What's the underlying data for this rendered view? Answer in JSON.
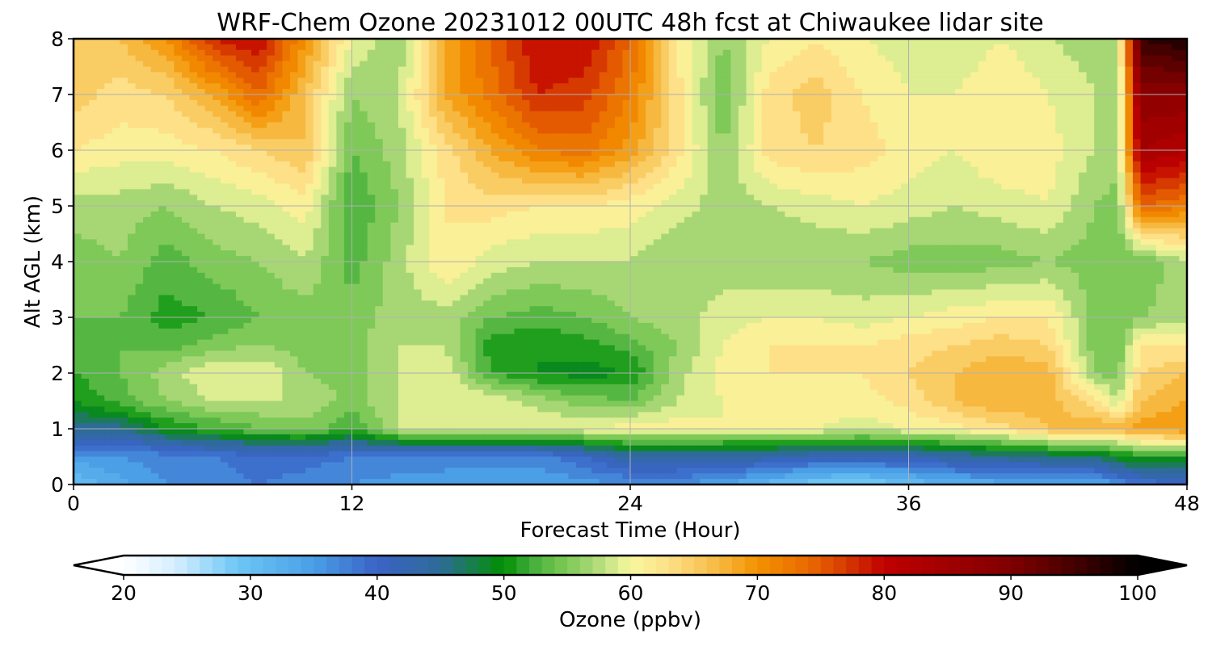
{
  "chart_data": {
    "type": "heatmap",
    "title": "WRF-Chem Ozone  20231012 00UTC 48h fcst at Chiwaukee lidar site",
    "xlabel": "Forecast Time (Hour)",
    "ylabel": "Alt AGL (km)",
    "xlim": [
      0,
      48
    ],
    "ylim": [
      0,
      8
    ],
    "xticks": [
      "0",
      "12",
      "24",
      "36",
      "48"
    ],
    "yticks": [
      "0",
      "1",
      "2",
      "3",
      "4",
      "5",
      "6",
      "7",
      "8"
    ],
    "grid": true,
    "colorbar": {
      "label": "Ozone  (ppbv)",
      "range": [
        20,
        100
      ],
      "ticks": [
        "20",
        "30",
        "40",
        "50",
        "60",
        "70",
        "80",
        "90",
        "100"
      ],
      "extend": "both",
      "orientation": "horizontal",
      "stops": [
        {
          "v": 20,
          "c": "#ffffff"
        },
        {
          "v": 24,
          "c": "#d6efff"
        },
        {
          "v": 29,
          "c": "#6ec6f5"
        },
        {
          "v": 35,
          "c": "#4a9fe6"
        },
        {
          "v": 40,
          "c": "#3a63c6"
        },
        {
          "v": 45,
          "c": "#2e6b98"
        },
        {
          "v": 50,
          "c": "#009000"
        },
        {
          "v": 52,
          "c": "#3fab3a"
        },
        {
          "v": 54,
          "c": "#6ac24a"
        },
        {
          "v": 57,
          "c": "#a7d774"
        },
        {
          "v": 60,
          "c": "#f8f8a0"
        },
        {
          "v": 63,
          "c": "#fde088"
        },
        {
          "v": 67,
          "c": "#f7b840"
        },
        {
          "v": 70,
          "c": "#f39200"
        },
        {
          "v": 74,
          "c": "#ea6a00"
        },
        {
          "v": 77,
          "c": "#d63a00"
        },
        {
          "v": 80,
          "c": "#c00000"
        },
        {
          "v": 85,
          "c": "#a00000"
        },
        {
          "v": 90,
          "c": "#800000"
        },
        {
          "v": 95,
          "c": "#450000"
        },
        {
          "v": 100,
          "c": "#000000"
        }
      ]
    },
    "times": [
      0,
      2,
      4,
      6,
      8,
      10,
      12,
      14,
      16,
      18,
      20,
      22,
      24,
      26,
      28,
      30,
      32,
      34,
      36,
      38,
      40,
      42,
      44,
      45,
      46,
      48
    ],
    "altitudes": [
      0,
      0.5,
      1,
      1.5,
      2,
      2.5,
      3,
      4,
      5,
      6,
      7,
      8
    ],
    "values": [
      [
        30,
        33,
        36,
        37,
        38,
        37,
        36,
        35,
        35,
        34,
        34,
        35,
        36,
        36,
        34,
        31,
        28,
        27,
        30,
        32,
        33,
        33,
        33,
        36,
        38,
        40
      ],
      [
        35,
        36,
        37,
        38,
        39,
        39,
        38,
        38,
        37,
        37,
        37,
        40,
        44,
        44,
        44,
        43,
        42,
        42,
        42,
        44,
        45,
        46,
        47,
        49,
        51,
        51
      ],
      [
        45,
        45,
        50,
        52,
        54,
        55,
        52,
        58,
        59,
        60,
        60,
        60,
        61,
        61,
        60,
        60,
        60,
        59,
        60,
        61,
        63,
        66,
        68,
        67,
        69,
        70
      ],
      [
        50,
        53,
        56,
        58,
        58,
        58,
        55,
        58,
        59,
        60,
        57,
        55,
        54,
        58,
        60,
        61,
        61,
        61,
        63,
        66,
        68,
        67,
        63,
        58,
        66,
        68
      ],
      [
        52,
        54,
        57,
        60,
        60,
        56,
        55,
        58,
        60,
        52,
        50,
        49,
        50,
        57,
        61,
        62,
        62,
        62,
        64,
        66,
        68,
        67,
        56,
        55,
        64,
        66
      ],
      [
        53,
        54,
        53,
        55,
        56,
        55,
        55,
        58,
        58,
        51,
        50,
        51,
        53,
        56,
        60,
        62,
        62,
        62,
        63,
        64,
        65,
        64,
        55,
        54,
        62,
        62
      ],
      [
        54,
        54,
        51,
        52,
        54,
        55,
        55,
        57,
        57,
        54,
        53,
        54,
        56,
        57,
        59,
        60,
        60,
        59,
        60,
        61,
        62,
        62,
        55,
        54,
        56,
        57
      ],
      [
        55,
        56,
        53,
        55,
        56,
        58,
        53,
        57,
        62,
        59,
        58,
        58,
        58,
        56,
        57,
        56,
        56,
        56,
        55,
        55,
        55,
        56,
        55,
        54,
        54,
        58
      ],
      [
        57,
        57,
        56,
        58,
        59,
        61,
        52,
        56,
        62,
        63,
        62,
        62,
        61,
        59,
        57,
        58,
        59,
        60,
        59,
        58,
        59,
        60,
        56,
        55,
        74,
        72
      ],
      [
        62,
        61,
        61,
        62,
        64,
        66,
        54,
        57,
        63,
        68,
        72,
        73,
        69,
        63,
        56,
        63,
        64,
        63,
        61,
        60,
        62,
        61,
        58,
        57,
        84,
        82
      ],
      [
        65,
        63,
        64,
        68,
        74,
        66,
        56,
        58,
        68,
        73,
        78,
        77,
        72,
        63,
        54,
        63,
        65,
        62,
        60,
        60,
        62,
        60,
        58,
        56,
        88,
        88
      ],
      [
        66,
        66,
        70,
        78,
        80,
        70,
        60,
        56,
        68,
        74,
        80,
        80,
        74,
        62,
        56,
        60,
        62,
        60,
        59,
        58,
        60,
        58,
        57,
        56,
        96,
        98
      ]
    ]
  }
}
